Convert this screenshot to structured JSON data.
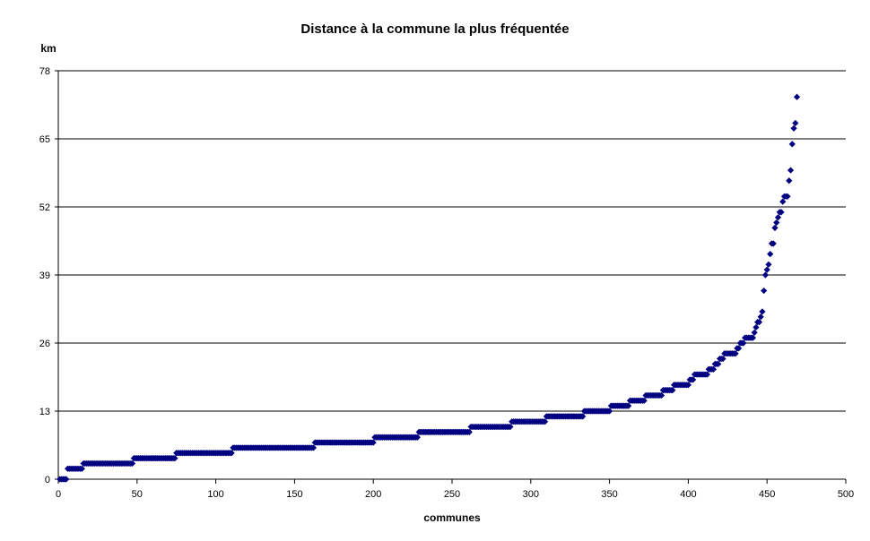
{
  "chart_data": {
    "type": "scatter",
    "title": "Distance à la commune la plus fréquentée",
    "xlabel": "communes",
    "ylabel": "km",
    "xlim": [
      0,
      500
    ],
    "ylim": [
      0,
      78
    ],
    "x_ticks": [
      0,
      50,
      100,
      150,
      200,
      250,
      300,
      350,
      400,
      450,
      500
    ],
    "y_ticks": [
      0,
      13,
      26,
      39,
      52,
      65,
      78
    ],
    "grid": "horizontal",
    "legend": "none",
    "marker": "diamond",
    "marker_color": "#000080",
    "plateaus": [
      {
        "x_start": 1,
        "x_end": 5,
        "y": 0
      },
      {
        "x_start": 6,
        "x_end": 15,
        "y": 2
      },
      {
        "x_start": 16,
        "x_end": 47,
        "y": 3
      },
      {
        "x_start": 48,
        "x_end": 74,
        "y": 4
      },
      {
        "x_start": 75,
        "x_end": 110,
        "y": 5
      },
      {
        "x_start": 111,
        "x_end": 162,
        "y": 6
      },
      {
        "x_start": 163,
        "x_end": 200,
        "y": 7
      },
      {
        "x_start": 201,
        "x_end": 228,
        "y": 8
      },
      {
        "x_start": 229,
        "x_end": 261,
        "y": 9
      },
      {
        "x_start": 262,
        "x_end": 287,
        "y": 10
      },
      {
        "x_start": 288,
        "x_end": 309,
        "y": 11
      },
      {
        "x_start": 310,
        "x_end": 333,
        "y": 12
      },
      {
        "x_start": 334,
        "x_end": 350,
        "y": 13
      },
      {
        "x_start": 351,
        "x_end": 362,
        "y": 14
      },
      {
        "x_start": 363,
        "x_end": 372,
        "y": 15
      },
      {
        "x_start": 373,
        "x_end": 383,
        "y": 16
      },
      {
        "x_start": 384,
        "x_end": 390,
        "y": 17
      },
      {
        "x_start": 391,
        "x_end": 400,
        "y": 18
      },
      {
        "x_start": 401,
        "x_end": 403,
        "y": 19
      },
      {
        "x_start": 404,
        "x_end": 412,
        "y": 20
      },
      {
        "x_start": 413,
        "x_end": 416,
        "y": 21
      },
      {
        "x_start": 417,
        "x_end": 419,
        "y": 22
      },
      {
        "x_start": 420,
        "x_end": 422,
        "y": 23
      },
      {
        "x_start": 423,
        "x_end": 430,
        "y": 24
      },
      {
        "x_start": 431,
        "x_end": 432,
        "y": 25
      },
      {
        "x_start": 433,
        "x_end": 435,
        "y": 26
      },
      {
        "x_start": 436,
        "x_end": 441,
        "y": 27
      }
    ],
    "tail_points": [
      [
        442,
        28
      ],
      [
        443,
        29
      ],
      [
        444,
        30
      ],
      [
        445,
        30
      ],
      [
        446,
        31
      ],
      [
        447,
        32
      ],
      [
        448,
        36
      ],
      [
        449,
        39
      ],
      [
        450,
        40
      ],
      [
        451,
        41
      ],
      [
        452,
        43
      ],
      [
        453,
        45
      ],
      [
        454,
        45
      ],
      [
        455,
        48
      ],
      [
        456,
        49
      ],
      [
        457,
        50
      ],
      [
        458,
        51
      ],
      [
        459,
        51
      ],
      [
        460,
        53
      ],
      [
        461,
        54
      ],
      [
        462,
        54
      ],
      [
        463,
        54
      ],
      [
        464,
        57
      ],
      [
        465,
        59
      ],
      [
        466,
        64
      ],
      [
        467,
        67
      ],
      [
        468,
        68
      ],
      [
        469,
        73
      ]
    ]
  }
}
